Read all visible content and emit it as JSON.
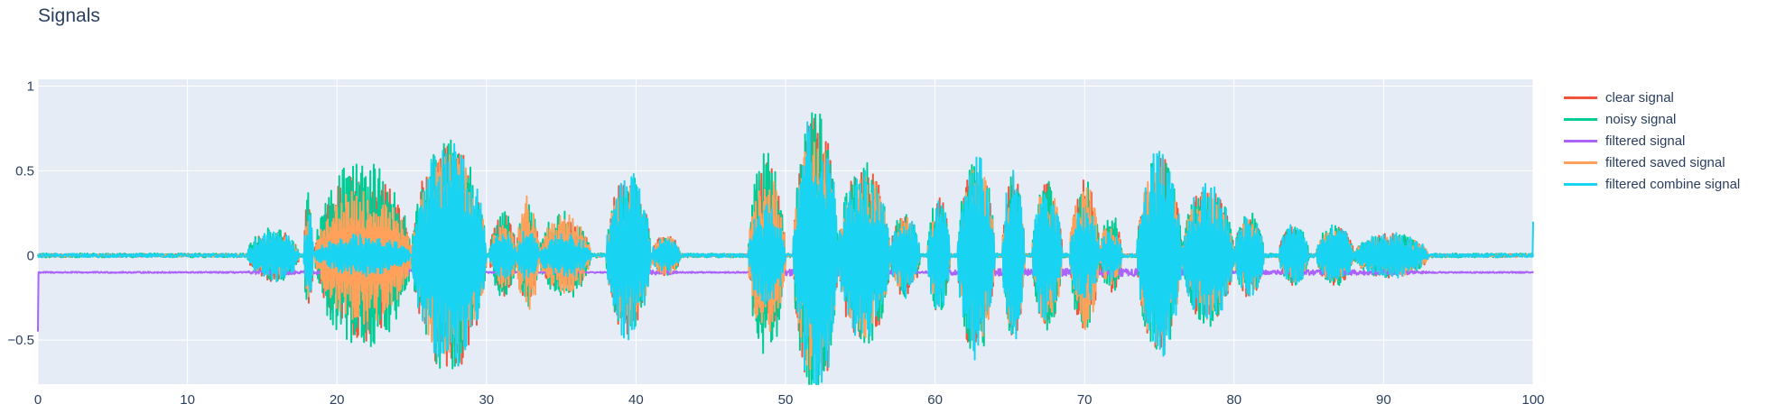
{
  "chart_data": {
    "type": "line",
    "title": "Signals",
    "xlabel": "",
    "ylabel": "",
    "xlim": [
      0,
      100
    ],
    "ylim": [
      -0.76,
      1.04
    ],
    "x_ticks": [
      0,
      10,
      20,
      30,
      40,
      50,
      60,
      70,
      80,
      90,
      100
    ],
    "x_tick_labels": [
      "0",
      "10",
      "20",
      "30",
      "40",
      "50",
      "60",
      "70",
      "80",
      "90",
      "100"
    ],
    "y_ticks": [
      -0.5,
      0,
      0.5,
      1
    ],
    "y_tick_labels": [
      "−0.5",
      "0",
      "0.5",
      "1"
    ],
    "grid": true,
    "legend_position": "top-right",
    "plot_background": "#e5ecf6",
    "grid_color": "#ffffff",
    "series": [
      {
        "name": "clear signal",
        "color": "#ef553b",
        "style": "waveform",
        "baseline": 0,
        "noise": 0.008,
        "segments": [
          {
            "x": [
              14,
              17.5
            ],
            "amp": 0.15
          },
          {
            "x": [
              17.8,
              18.4
            ],
            "amp": 0.35
          },
          {
            "x": [
              18.5,
              25
            ],
            "amp": 0.5
          },
          {
            "x": [
              25,
              30
            ],
            "amp": 0.7
          },
          {
            "x": [
              30.2,
              32
            ],
            "amp": 0.25
          },
          {
            "x": [
              32,
              33.5
            ],
            "amp": 0.3
          },
          {
            "x": [
              33.5,
              37
            ],
            "amp": 0.22
          },
          {
            "x": [
              38,
              41
            ],
            "amp": 0.48
          },
          {
            "x": [
              41,
              43
            ],
            "amp": 0.12
          },
          {
            "x": [
              47.5,
              50
            ],
            "amp": 0.55
          },
          {
            "x": [
              50.5,
              53.5
            ],
            "amp": 0.85
          },
          {
            "x": [
              53.5,
              57
            ],
            "amp": 0.55
          },
          {
            "x": [
              57,
              59
            ],
            "amp": 0.25
          },
          {
            "x": [
              59.5,
              61
            ],
            "amp": 0.35
          },
          {
            "x": [
              61.5,
              64
            ],
            "amp": 0.6
          },
          {
            "x": [
              64.5,
              66
            ],
            "amp": 0.5
          },
          {
            "x": [
              66.5,
              68.5
            ],
            "amp": 0.45
          },
          {
            "x": [
              69,
              71
            ],
            "amp": 0.45
          },
          {
            "x": [
              71,
              72.5
            ],
            "amp": 0.22
          },
          {
            "x": [
              73.5,
              76.5
            ],
            "amp": 0.6
          },
          {
            "x": [
              76.5,
              80
            ],
            "amp": 0.42
          },
          {
            "x": [
              80,
              82
            ],
            "amp": 0.25
          },
          {
            "x": [
              83,
              85
            ],
            "amp": 0.18
          },
          {
            "x": [
              85.5,
              88
            ],
            "amp": 0.18
          },
          {
            "x": [
              88,
              93
            ],
            "amp": 0.13
          }
        ]
      },
      {
        "name": "noisy signal",
        "color": "#00cc96",
        "style": "waveform",
        "baseline": 0,
        "noise": 0.012,
        "segments": [
          {
            "x": [
              14,
              17.5
            ],
            "amp": 0.16
          },
          {
            "x": [
              17.8,
              18.4
            ],
            "amp": 0.38
          },
          {
            "x": [
              18.5,
              25
            ],
            "amp": 0.58
          },
          {
            "x": [
              25,
              30
            ],
            "amp": 0.7
          },
          {
            "x": [
              30.2,
              32
            ],
            "amp": 0.26
          },
          {
            "x": [
              32,
              33.5
            ],
            "amp": 0.3
          },
          {
            "x": [
              33.5,
              37
            ],
            "amp": 0.26
          },
          {
            "x": [
              38,
              41
            ],
            "amp": 0.48
          },
          {
            "x": [
              41,
              43
            ],
            "amp": 0.12
          },
          {
            "x": [
              47.5,
              50
            ],
            "amp": 0.62
          },
          {
            "x": [
              50.5,
              53.5
            ],
            "amp": 0.85
          },
          {
            "x": [
              53.5,
              57
            ],
            "amp": 0.55
          },
          {
            "x": [
              57,
              59
            ],
            "amp": 0.25
          },
          {
            "x": [
              59.5,
              61
            ],
            "amp": 0.35
          },
          {
            "x": [
              61.5,
              64
            ],
            "amp": 0.6
          },
          {
            "x": [
              64.5,
              66
            ],
            "amp": 0.5
          },
          {
            "x": [
              66.5,
              68.5
            ],
            "amp": 0.45
          },
          {
            "x": [
              69,
              71
            ],
            "amp": 0.45
          },
          {
            "x": [
              71,
              72.5
            ],
            "amp": 0.24
          },
          {
            "x": [
              73.5,
              76.5
            ],
            "amp": 0.6
          },
          {
            "x": [
              76.5,
              80
            ],
            "amp": 0.42
          },
          {
            "x": [
              80,
              82
            ],
            "amp": 0.25
          },
          {
            "x": [
              83,
              85
            ],
            "amp": 0.18
          },
          {
            "x": [
              85.5,
              88
            ],
            "amp": 0.18
          },
          {
            "x": [
              88,
              93
            ],
            "amp": 0.13
          }
        ]
      },
      {
        "name": "filtered signal",
        "color": "#ab63fa",
        "style": "flat",
        "baseline": -0.1,
        "noise": 0.004,
        "start_value": -0.45,
        "segments": [
          {
            "x": [
              14,
              18
            ],
            "amp": 0.01
          },
          {
            "x": [
              18,
              30
            ],
            "amp": 0.02
          },
          {
            "x": [
              38,
              43
            ],
            "amp": 0.012
          },
          {
            "x": [
              47.5,
              58
            ],
            "amp": 0.02
          },
          {
            "x": [
              59,
              80
            ],
            "amp": 0.02
          },
          {
            "x": [
              80,
              93
            ],
            "amp": 0.012
          }
        ]
      },
      {
        "name": "filtered saved signal",
        "color": "#ffa15a",
        "style": "waveform",
        "baseline": 0,
        "noise": 0.006,
        "segments": [
          {
            "x": [
              14,
              17.5
            ],
            "amp": 0.12
          },
          {
            "x": [
              17.8,
              18.4
            ],
            "amp": 0.25
          },
          {
            "x": [
              18.5,
              25
            ],
            "amp": 0.4
          },
          {
            "x": [
              25,
              30
            ],
            "amp": 0.6
          },
          {
            "x": [
              30.2,
              32
            ],
            "amp": 0.2
          },
          {
            "x": [
              32,
              33.5
            ],
            "amp": 0.35
          },
          {
            "x": [
              33.5,
              37
            ],
            "amp": 0.24
          },
          {
            "x": [
              38,
              41
            ],
            "amp": 0.42
          },
          {
            "x": [
              41,
              43
            ],
            "amp": 0.12
          },
          {
            "x": [
              47.5,
              50
            ],
            "amp": 0.48
          },
          {
            "x": [
              50.5,
              53.5
            ],
            "amp": 0.72
          },
          {
            "x": [
              53.5,
              57
            ],
            "amp": 0.5
          },
          {
            "x": [
              57,
              59
            ],
            "amp": 0.22
          },
          {
            "x": [
              59.5,
              61
            ],
            "amp": 0.3
          },
          {
            "x": [
              61.5,
              64
            ],
            "amp": 0.55
          },
          {
            "x": [
              64.5,
              66
            ],
            "amp": 0.45
          },
          {
            "x": [
              66.5,
              68.5
            ],
            "amp": 0.42
          },
          {
            "x": [
              69,
              71
            ],
            "amp": 0.48
          },
          {
            "x": [
              71,
              72.5
            ],
            "amp": 0.2
          },
          {
            "x": [
              73.5,
              76.5
            ],
            "amp": 0.55
          },
          {
            "x": [
              76.5,
              80
            ],
            "amp": 0.38
          },
          {
            "x": [
              80,
              82
            ],
            "amp": 0.22
          },
          {
            "x": [
              83,
              85
            ],
            "amp": 0.16
          },
          {
            "x": [
              85.5,
              88
            ],
            "amp": 0.16
          },
          {
            "x": [
              88,
              93
            ],
            "amp": 0.12
          }
        ]
      },
      {
        "name": "filtered combine signal",
        "color": "#19d3f3",
        "style": "waveform",
        "baseline": 0,
        "noise": 0.01,
        "end_value": 0.2,
        "segments": [
          {
            "x": [
              14,
              17.5
            ],
            "amp": 0.15
          },
          {
            "x": [
              17.8,
              18.4
            ],
            "amp": 0.3
          },
          {
            "x": [
              18.5,
              25
            ],
            "amp": 0.12
          },
          {
            "x": [
              25,
              30
            ],
            "amp": 0.68
          },
          {
            "x": [
              30.2,
              32
            ],
            "amp": 0.15
          },
          {
            "x": [
              32,
              33.5
            ],
            "amp": 0.16
          },
          {
            "x": [
              33.5,
              37
            ],
            "amp": 0.14
          },
          {
            "x": [
              38,
              41
            ],
            "amp": 0.5
          },
          {
            "x": [
              41,
              43
            ],
            "amp": 0.1
          },
          {
            "x": [
              47.5,
              50
            ],
            "amp": 0.3
          },
          {
            "x": [
              50.5,
              53.5
            ],
            "amp": 0.9
          },
          {
            "x": [
              53.5,
              57
            ],
            "amp": 0.52
          },
          {
            "x": [
              57,
              59
            ],
            "amp": 0.25
          },
          {
            "x": [
              59.5,
              61
            ],
            "amp": 0.35
          },
          {
            "x": [
              61.5,
              64
            ],
            "amp": 0.63
          },
          {
            "x": [
              64.5,
              66
            ],
            "amp": 0.52
          },
          {
            "x": [
              66.5,
              68.5
            ],
            "amp": 0.42
          },
          {
            "x": [
              69,
              71
            ],
            "amp": 0.3
          },
          {
            "x": [
              71,
              72.5
            ],
            "amp": 0.15
          },
          {
            "x": [
              73.5,
              76.5
            ],
            "amp": 0.62
          },
          {
            "x": [
              76.5,
              80
            ],
            "amp": 0.42
          },
          {
            "x": [
              80,
              82
            ],
            "amp": 0.25
          },
          {
            "x": [
              83,
              85
            ],
            "amp": 0.18
          },
          {
            "x": [
              85.5,
              88
            ],
            "amp": 0.18
          },
          {
            "x": [
              88,
              93
            ],
            "amp": 0.13
          }
        ]
      }
    ]
  }
}
